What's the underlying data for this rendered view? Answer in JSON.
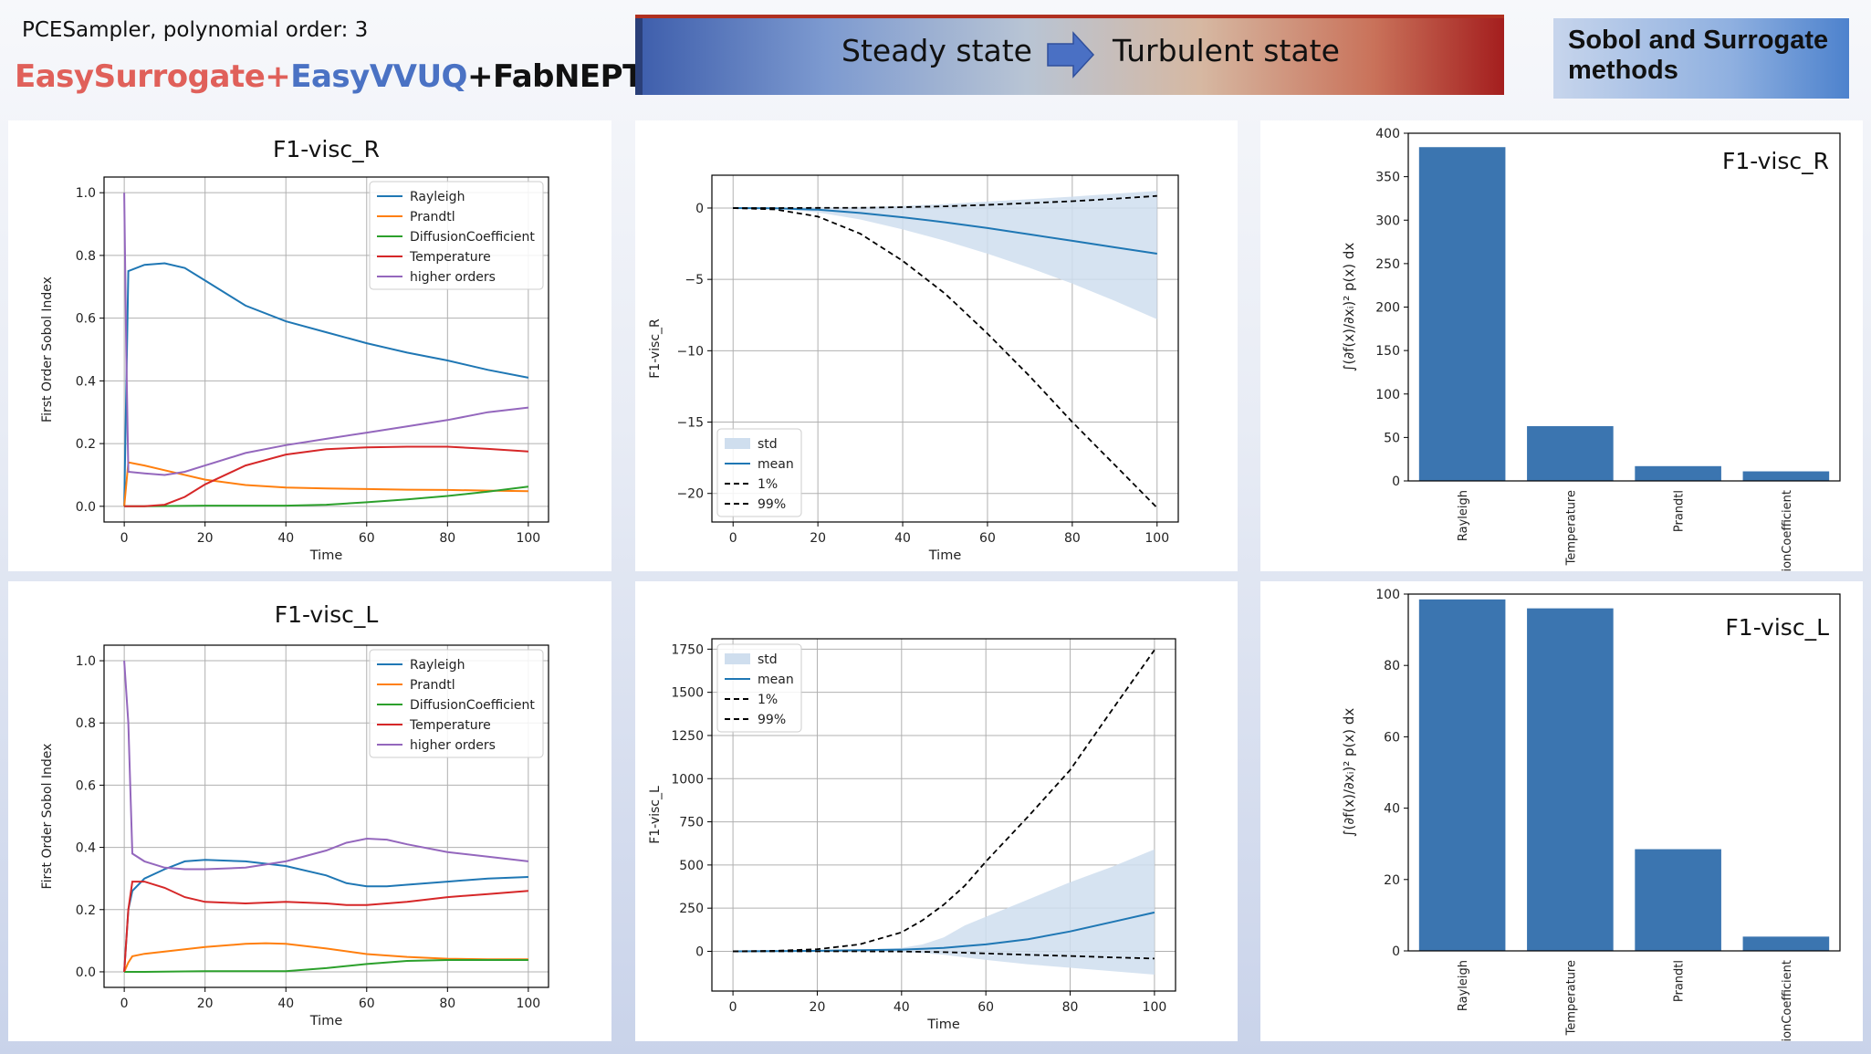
{
  "header": {
    "sampler_text": "PCESampler, polynomial order: 3",
    "title_part1": "EasySurrogate+",
    "title_part2": "EasyVVUQ",
    "title_part3": "+FabNEPTUNE",
    "banner_left": "Steady state",
    "banner_right": "Turbulent state",
    "box_text_line1": "Sobol and Surrogate",
    "box_text_line2": "methods",
    "arrow_icon": "right-arrow-icon",
    "colors": {
      "red": "#e0605a",
      "blue": "#4a72c4",
      "arrow": "#4a70c4"
    }
  },
  "chart_data": [
    {
      "id": "sobol_R",
      "type": "line",
      "title": "F1-visc_R",
      "xlabel": "Time",
      "ylabel": "First Order Sobol Index",
      "xlim": [
        -5,
        105
      ],
      "ylim": [
        -0.05,
        1.05
      ],
      "xticks": [
        0,
        20,
        40,
        60,
        80,
        100
      ],
      "yticks": [
        0.0,
        0.2,
        0.4,
        0.6,
        0.8,
        1.0
      ],
      "ytick_labels": [
        "0.0",
        "0.2",
        "0.4",
        "0.6",
        "0.8",
        "1.0"
      ],
      "grid": true,
      "legend": "top-right",
      "series": [
        {
          "name": "Rayleigh",
          "color": "#1f77b4",
          "x": [
            0,
            1,
            5,
            10,
            15,
            20,
            30,
            40,
            50,
            60,
            70,
            80,
            90,
            100
          ],
          "y": [
            0.0,
            0.75,
            0.77,
            0.775,
            0.76,
            0.72,
            0.64,
            0.59,
            0.555,
            0.52,
            0.49,
            0.465,
            0.435,
            0.41
          ]
        },
        {
          "name": "Prandtl",
          "color": "#ff7f0e",
          "x": [
            0,
            1,
            5,
            10,
            20,
            30,
            40,
            50,
            60,
            70,
            80,
            90,
            100
          ],
          "y": [
            0.0,
            0.14,
            0.13,
            0.115,
            0.085,
            0.068,
            0.06,
            0.057,
            0.055,
            0.053,
            0.052,
            0.05,
            0.048
          ]
        },
        {
          "name": "DiffusionCoefficient",
          "color": "#2ca02c",
          "x": [
            0,
            5,
            20,
            40,
            50,
            60,
            70,
            80,
            90,
            100
          ],
          "y": [
            0.0,
            0.0,
            0.002,
            0.002,
            0.005,
            0.013,
            0.022,
            0.033,
            0.047,
            0.063
          ]
        },
        {
          "name": "Temperature",
          "color": "#d62728",
          "x": [
            0,
            5,
            10,
            15,
            20,
            30,
            40,
            50,
            60,
            70,
            80,
            90,
            100
          ],
          "y": [
            0.0,
            0.0,
            0.005,
            0.03,
            0.07,
            0.13,
            0.165,
            0.182,
            0.188,
            0.19,
            0.19,
            0.183,
            0.175
          ]
        },
        {
          "name": "higher orders",
          "color": "#9467bd",
          "x": [
            0,
            0.5,
            1,
            5,
            10,
            15,
            20,
            30,
            40,
            50,
            60,
            70,
            80,
            90,
            100
          ],
          "y": [
            1.0,
            0.5,
            0.11,
            0.105,
            0.1,
            0.11,
            0.13,
            0.17,
            0.195,
            0.215,
            0.235,
            0.255,
            0.275,
            0.3,
            0.315
          ]
        }
      ]
    },
    {
      "id": "stats_R",
      "type": "area",
      "title": "",
      "xlabel": "Time",
      "ylabel": "F1-visc_R",
      "xlim": [
        -5,
        105
      ],
      "ylim": [
        -22,
        2.3
      ],
      "xticks": [
        0,
        20,
        40,
        60,
        80,
        100
      ],
      "yticks": [
        0,
        -5,
        -10,
        -15,
        -20
      ],
      "ytick_labels": [
        "0",
        "−5",
        "−10",
        "−15",
        "−20"
      ],
      "grid": true,
      "legend": "bottom-left",
      "x": [
        0,
        10,
        20,
        30,
        40,
        50,
        60,
        70,
        80,
        90,
        100
      ],
      "mean": [
        0,
        -0.02,
        -0.12,
        -0.35,
        -0.65,
        -1.0,
        -1.4,
        -1.85,
        -2.3,
        -2.75,
        -3.2
      ],
      "std_upper": [
        0,
        0.01,
        0.02,
        0.06,
        0.15,
        0.28,
        0.45,
        0.62,
        0.8,
        1.0,
        1.2
      ],
      "std_lower": [
        0,
        -0.05,
        -0.3,
        -0.8,
        -1.5,
        -2.3,
        -3.2,
        -4.2,
        -5.3,
        -6.5,
        -7.8
      ],
      "p1": [
        0,
        -0.1,
        -0.6,
        -1.8,
        -3.7,
        -6.0,
        -8.8,
        -11.8,
        -15.0,
        -18.0,
        -21.0
      ],
      "p99": [
        0,
        0,
        0.01,
        0.02,
        0.06,
        0.12,
        0.22,
        0.35,
        0.48,
        0.65,
        0.85
      ],
      "series": [
        {
          "name": "std",
          "color": "#cfdeee"
        },
        {
          "name": "mean",
          "color": "#1f77b4"
        },
        {
          "name": "1%",
          "color": "#000000"
        },
        {
          "name": "99%",
          "color": "#000000"
        }
      ]
    },
    {
      "id": "bars_R",
      "type": "bar",
      "label": "F1-visc_R",
      "ylabel": "∫(∂f(x)/∂xᵢ)² p(x) dx",
      "categories": [
        "Rayleigh",
        "Temperature",
        "Prandtl",
        "DiffusionCoefficient"
      ],
      "values": [
        384,
        63,
        17,
        11
      ],
      "ylim": [
        0,
        400
      ],
      "yticks": [
        0,
        50,
        100,
        150,
        200,
        250,
        300,
        350,
        400
      ],
      "color": "#3b75b0",
      "grid": false
    },
    {
      "id": "sobol_L",
      "type": "line",
      "title": "F1-visc_L",
      "xlabel": "Time",
      "ylabel": "First Order Sobol Index",
      "xlim": [
        -5,
        105
      ],
      "ylim": [
        -0.05,
        1.05
      ],
      "xticks": [
        0,
        20,
        40,
        60,
        80,
        100
      ],
      "yticks": [
        0.0,
        0.2,
        0.4,
        0.6,
        0.8,
        1.0
      ],
      "ytick_labels": [
        "0.0",
        "0.2",
        "0.4",
        "0.6",
        "0.8",
        "1.0"
      ],
      "grid": true,
      "legend": "top-right",
      "series": [
        {
          "name": "Rayleigh",
          "color": "#1f77b4",
          "x": [
            0,
            1,
            2,
            5,
            10,
            15,
            20,
            30,
            40,
            50,
            55,
            60,
            65,
            70,
            80,
            90,
            100
          ],
          "y": [
            0.0,
            0.2,
            0.26,
            0.3,
            0.33,
            0.355,
            0.36,
            0.355,
            0.34,
            0.31,
            0.285,
            0.275,
            0.275,
            0.28,
            0.29,
            0.3,
            0.305
          ]
        },
        {
          "name": "Prandtl",
          "color": "#ff7f0e",
          "x": [
            0,
            1,
            2,
            5,
            10,
            20,
            30,
            35,
            40,
            50,
            60,
            70,
            80,
            90,
            100
          ],
          "y": [
            0.0,
            0.03,
            0.05,
            0.058,
            0.065,
            0.08,
            0.09,
            0.092,
            0.09,
            0.075,
            0.057,
            0.048,
            0.042,
            0.04,
            0.04
          ]
        },
        {
          "name": "DiffusionCoefficient",
          "color": "#2ca02c",
          "x": [
            0,
            5,
            20,
            40,
            50,
            60,
            70,
            80,
            90,
            100
          ],
          "y": [
            0.0,
            0.0,
            0.002,
            0.002,
            0.012,
            0.025,
            0.035,
            0.038,
            0.038,
            0.038
          ]
        },
        {
          "name": "Temperature",
          "color": "#d62728",
          "x": [
            0,
            1,
            2,
            5,
            10,
            15,
            20,
            30,
            40,
            50,
            55,
            60,
            70,
            80,
            90,
            100
          ],
          "y": [
            0.0,
            0.2,
            0.29,
            0.29,
            0.27,
            0.24,
            0.225,
            0.22,
            0.225,
            0.22,
            0.215,
            0.215,
            0.225,
            0.24,
            0.25,
            0.26
          ]
        },
        {
          "name": "higher orders",
          "color": "#9467bd",
          "x": [
            0,
            1,
            2,
            5,
            10,
            15,
            20,
            30,
            40,
            50,
            55,
            60,
            65,
            70,
            80,
            90,
            100
          ],
          "y": [
            1.0,
            0.8,
            0.38,
            0.355,
            0.335,
            0.33,
            0.33,
            0.335,
            0.355,
            0.39,
            0.415,
            0.428,
            0.425,
            0.41,
            0.385,
            0.37,
            0.355
          ]
        }
      ]
    },
    {
      "id": "stats_L",
      "type": "area",
      "title": "",
      "xlabel": "Time",
      "ylabel": "F1-visc_L",
      "xlim": [
        -5,
        105
      ],
      "ylim": [
        -230,
        1810
      ],
      "xticks": [
        0,
        20,
        40,
        60,
        80,
        100
      ],
      "yticks": [
        0,
        250,
        500,
        750,
        1000,
        1250,
        1500,
        1750
      ],
      "ytick_labels": [
        "0",
        "250",
        "500",
        "750",
        "1000",
        "1250",
        "1500",
        "1750"
      ],
      "grid": true,
      "legend": "top-left",
      "x": [
        0,
        10,
        20,
        30,
        40,
        45,
        50,
        55,
        60,
        70,
        80,
        90,
        100
      ],
      "mean": [
        0,
        1,
        3,
        6,
        10,
        14,
        20,
        30,
        40,
        70,
        115,
        170,
        225
      ],
      "std_upper": [
        0,
        2,
        5,
        10,
        20,
        40,
        80,
        150,
        200,
        300,
        400,
        490,
        590
      ],
      "std_lower": [
        0,
        0,
        0,
        -2,
        -5,
        -10,
        -20,
        -35,
        -50,
        -75,
        -95,
        -115,
        -135
      ],
      "p1": [
        0,
        0,
        0,
        0,
        -1,
        -3,
        -5,
        -8,
        -12,
        -20,
        -27,
        -35,
        -42
      ],
      "p99": [
        0,
        3,
        12,
        40,
        110,
        180,
        270,
        380,
        520,
        780,
        1050,
        1400,
        1745
      ],
      "series": [
        {
          "name": "std",
          "color": "#cfdeee"
        },
        {
          "name": "mean",
          "color": "#1f77b4"
        },
        {
          "name": "1%",
          "color": "#000000"
        },
        {
          "name": "99%",
          "color": "#000000"
        }
      ]
    },
    {
      "id": "bars_L",
      "type": "bar",
      "label": "F1-visc_L",
      "ylabel": "∫(∂f(x)/∂xᵢ)² p(x) dx",
      "categories": [
        "Rayleigh",
        "Temperature",
        "Prandtl",
        "DiffusionCoefficient"
      ],
      "values": [
        98.5,
        96,
        28.5,
        4
      ],
      "ylim": [
        0,
        100
      ],
      "yticks": [
        0,
        20,
        40,
        60,
        80,
        100
      ],
      "color": "#3b75b0",
      "grid": false
    }
  ]
}
